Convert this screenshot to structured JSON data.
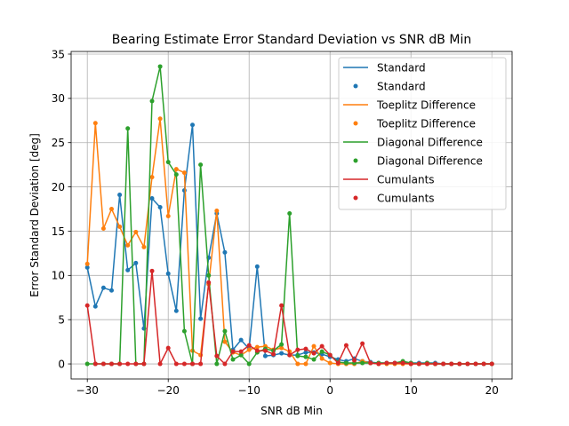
{
  "chart_data": {
    "type": "line",
    "title": "Bearing Estimate Error Standard Deviation vs SNR dB Min",
    "xlabel": "SNR dB Min",
    "ylabel": "Error Standard Deviation [deg]",
    "xlim": [
      -32,
      22.5
    ],
    "ylim": [
      -1.7,
      35.3
    ],
    "xticks": [
      -30,
      -20,
      -10,
      0,
      10,
      20
    ],
    "yticks": [
      0,
      5,
      10,
      15,
      20,
      25,
      30,
      35
    ],
    "grid": true,
    "legend_position": "top-right",
    "x": [
      -30,
      -29,
      -28,
      -27,
      -26,
      -25,
      -24,
      -23,
      -22,
      -21,
      -20,
      -19,
      -18,
      -17,
      -16,
      -15,
      -14,
      -13,
      -12,
      -11,
      -10,
      -9,
      -8,
      -7,
      -6,
      -5,
      -4,
      -3,
      -2,
      -1,
      0,
      1,
      2,
      3,
      4,
      5,
      6,
      7,
      8,
      9,
      10,
      11,
      12,
      13,
      14,
      15,
      16,
      17,
      18,
      19,
      20
    ],
    "series": [
      {
        "name": "Standard",
        "color": "#1f77b4",
        "values": [
          10.9,
          6.5,
          8.6,
          8.3,
          19.1,
          10.6,
          11.4,
          4.0,
          18.7,
          17.7,
          10.2,
          6.0,
          19.6,
          27.0,
          5.1,
          12.0,
          17.0,
          12.6,
          1.6,
          2.7,
          1.7,
          11.0,
          0.9,
          1.0,
          1.2,
          1.0,
          1.0,
          1.3,
          1.3,
          1.1,
          0.8,
          0.5,
          0.3,
          0.6,
          0.3,
          0.2,
          0.1,
          0.1,
          0.1,
          0.2,
          0.1,
          0.1,
          0.1,
          0.1,
          0.0,
          0.0,
          0.0,
          0.0,
          0.0,
          0.0,
          0.0
        ]
      },
      {
        "name": "Toeplitz Difference",
        "color": "#ff7f0e",
        "values": [
          11.3,
          27.2,
          15.3,
          17.5,
          15.5,
          13.4,
          14.9,
          13.2,
          21.1,
          27.7,
          16.7,
          22.0,
          21.6,
          1.5,
          1.0,
          9.0,
          17.3,
          2.5,
          1.3,
          1.0,
          1.6,
          1.9,
          2.0,
          1.6,
          1.8,
          1.4,
          0.0,
          0.0,
          2.0,
          0.6,
          0.1,
          0.0,
          0.0,
          0.0,
          0.3,
          0.1,
          0.0,
          0.0,
          0.0,
          0.0,
          0.0,
          0.0,
          0.0,
          0.0,
          0.0,
          0.0,
          0.0,
          0.0,
          0.0,
          0.0,
          0.0
        ]
      },
      {
        "name": "Diagonal Difference",
        "color": "#2ca02c",
        "values": [
          0.0,
          0.0,
          0.0,
          0.0,
          0.0,
          26.6,
          0.0,
          0.0,
          29.7,
          33.6,
          22.8,
          21.4,
          3.7,
          0.0,
          22.5,
          10.0,
          0.0,
          3.7,
          0.5,
          1.0,
          0.0,
          1.3,
          1.7,
          1.5,
          2.2,
          17.0,
          0.9,
          0.8,
          0.5,
          1.4,
          1.0,
          0.2,
          0.1,
          0.1,
          0.1,
          0.1,
          0.1,
          0.1,
          0.1,
          0.3,
          0.1,
          0.0,
          0.1,
          0.0,
          0.0,
          0.0,
          0.0,
          0.0,
          0.0,
          0.0,
          0.0
        ]
      },
      {
        "name": "Cumulants",
        "color": "#d62728",
        "values": [
          6.6,
          0.0,
          0.0,
          0.0,
          0.0,
          0.0,
          0.0,
          0.0,
          10.5,
          0.0,
          1.8,
          0.0,
          0.0,
          0.0,
          0.0,
          9.2,
          0.9,
          0.0,
          1.4,
          1.4,
          2.1,
          1.5,
          1.5,
          1.1,
          6.6,
          1.0,
          1.6,
          1.7,
          1.2,
          2.0,
          1.0,
          0.1,
          2.1,
          0.4,
          2.3,
          0.1,
          0.0,
          0.1,
          0.1,
          0.1,
          0.0,
          0.0,
          0.0,
          0.0,
          0.0,
          0.0,
          0.0,
          0.0,
          0.0,
          0.0,
          0.0
        ]
      }
    ],
    "legend_entries": [
      {
        "label": "Standard",
        "kind": "line",
        "series": 0
      },
      {
        "label": "Standard",
        "kind": "scatter",
        "series": 0
      },
      {
        "label": "Toeplitz Difference",
        "kind": "line",
        "series": 1
      },
      {
        "label": "Toeplitz Difference",
        "kind": "scatter",
        "series": 1
      },
      {
        "label": "Diagonal Difference",
        "kind": "line",
        "series": 2
      },
      {
        "label": "Diagonal Difference",
        "kind": "scatter",
        "series": 2
      },
      {
        "label": "Cumulants",
        "kind": "line",
        "series": 3
      },
      {
        "label": "Cumulants",
        "kind": "scatter",
        "series": 3
      }
    ]
  }
}
